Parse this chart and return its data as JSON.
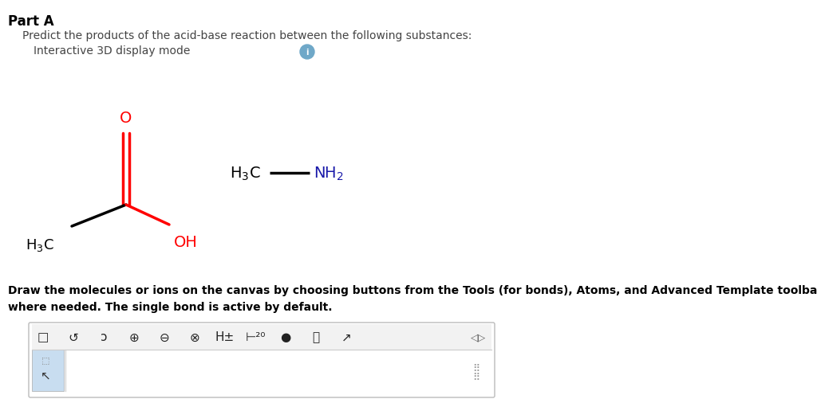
{
  "background_color": "#ffffff",
  "title_text": "Part A",
  "subtitle_text": "Predict the products of the acid-base reaction between the following substances:",
  "interactive_text": "Interactive 3D display mode",
  "instruction_text": "Draw the molecules or ions on the canvas by choosing buttons from the Tools (for bonds), Atoms, and Advanced Template toolbars, including charges\nwhere needed. The single bond is active by default.",
  "title_fontsize": 12,
  "subtitle_fontsize": 10,
  "body_fontsize": 10,
  "instruction_fontsize": 10,
  "mol1_bond_color": "#000000",
  "mol1_red_color": "#ff0000",
  "mol2_black_color": "#000000",
  "mol2_blue_color": "#1a1aaa",
  "info_circle_color": "#6fa8c8",
  "canvas_border_color": "#bbbbbb",
  "toolbar_bg_color": "#f2f2f2"
}
